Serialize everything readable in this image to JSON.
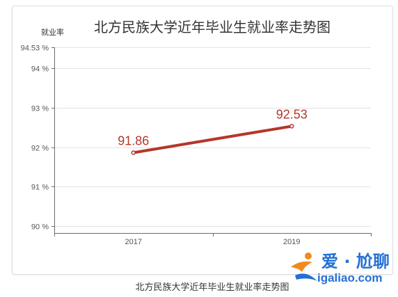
{
  "chart_data": {
    "type": "line",
    "title": "北方民族大学近年毕业生就业率走势图",
    "ylabel": "就业率",
    "categories": [
      "2017",
      "2019"
    ],
    "series": [
      {
        "values": [
          91.86,
          92.53
        ],
        "color": "#b5362b",
        "show_data_labels": true
      }
    ],
    "ylim": [
      90,
      94.53
    ],
    "y_ticks": [
      90,
      91,
      92,
      93,
      94,
      94.53
    ],
    "y_tick_labels": [
      "90 %",
      "91 %",
      "92 %",
      "93 %",
      "94 %",
      "94.53 %"
    ],
    "grid": true
  },
  "caption": "北方民族大学近年毕业生就业率走势图",
  "watermark": {
    "icon": "runner-logo-icon",
    "brand": "爱 · 尬聊",
    "domain": "igaliao.com"
  },
  "colors": {
    "series": "#b5362b",
    "grid": "#e2e2e2",
    "axis": "#6b6b6b",
    "tick_text": "#555555",
    "watermark_blue": "#2470d6",
    "watermark_orange": "#f08a1c"
  }
}
